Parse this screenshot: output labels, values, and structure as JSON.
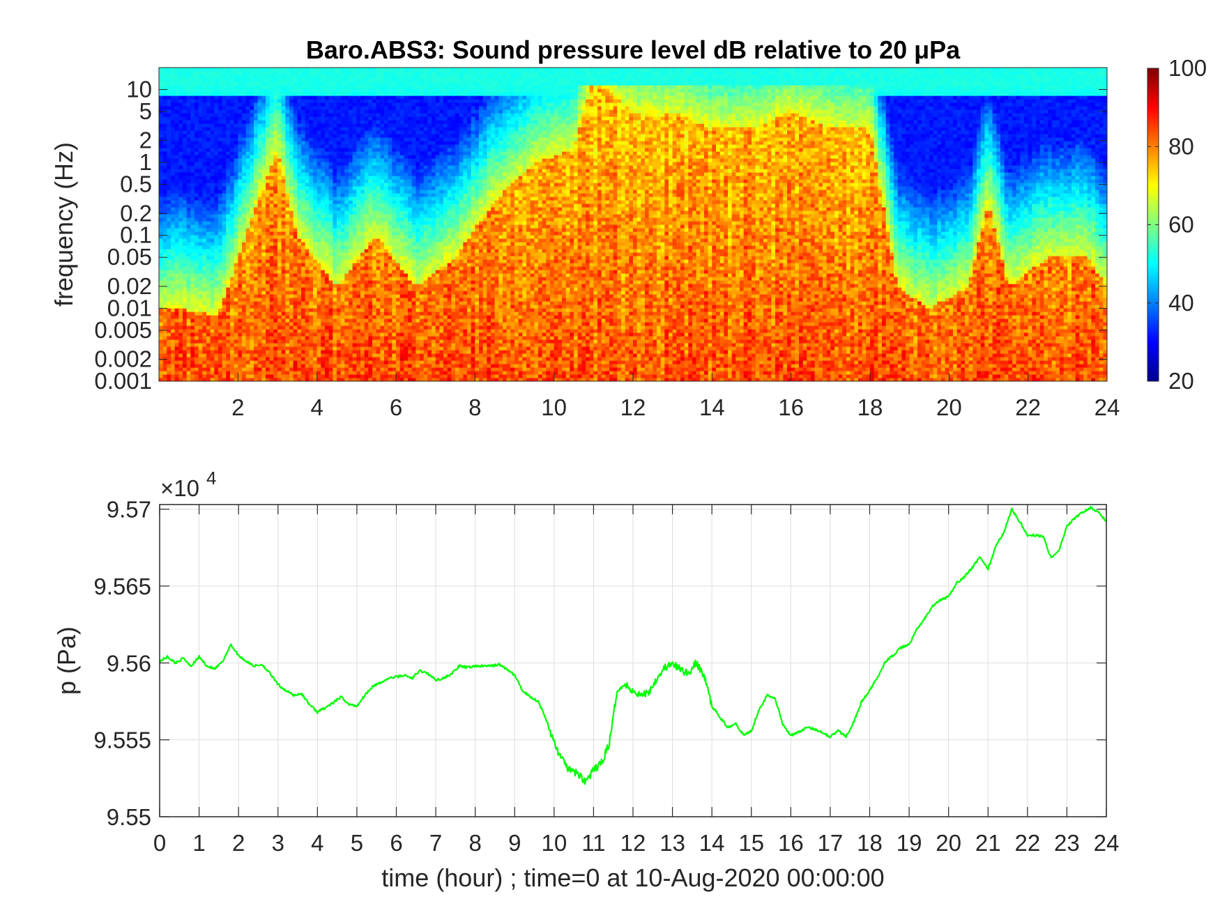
{
  "chart_data": [
    {
      "type": "heatmap",
      "title": "Baro.ABS3: Sound pressure level dB relative to 20 μPa",
      "xlabel": "",
      "ylabel": "frequency (Hz)",
      "y_scale": "log",
      "xlim": [
        0,
        24
      ],
      "ylim": [
        0.001,
        20
      ],
      "x_ticks": [
        2,
        4,
        6,
        8,
        10,
        12,
        14,
        16,
        18,
        20,
        22,
        24
      ],
      "x_tick_labels": [
        "2",
        "4",
        "6",
        "8",
        "10",
        "12",
        "14",
        "16",
        "18",
        "20",
        "22",
        "24"
      ],
      "y_ticks": [
        0.001,
        0.002,
        0.005,
        0.01,
        0.02,
        0.05,
        0.1,
        0.2,
        0.5,
        1,
        2,
        5,
        10
      ],
      "y_tick_labels": [
        "0.001",
        "0.002",
        "0.005",
        "0.01",
        "0.02",
        "0.05",
        "0.1",
        "0.2",
        "0.5",
        "1",
        "2",
        "5",
        "10"
      ],
      "colorbar": {
        "colormap": "jet",
        "clim": [
          20,
          100
        ],
        "ticks": [
          20,
          40,
          60,
          80,
          100
        ],
        "tick_labels": [
          "20",
          "40",
          "60",
          "80",
          "100"
        ]
      },
      "activity_profile": {
        "description_hours": [
          0.5,
          1.5,
          2.5,
          3.0,
          3.5,
          4.5,
          5.5,
          6.5,
          7.5,
          8.5,
          9.5,
          10.5,
          11,
          12,
          13,
          14,
          15,
          16,
          17,
          18,
          18.7,
          19.5,
          20.5,
          21,
          21.5,
          22.5,
          23.5,
          24
        ],
        "top_freq_hz_of_loud_band": [
          0.01,
          0.008,
          0.3,
          1.5,
          0.1,
          0.02,
          0.1,
          0.02,
          0.05,
          0.3,
          1.0,
          1.5,
          15,
          5,
          5,
          3,
          3,
          5,
          3,
          3,
          0.02,
          0.01,
          0.02,
          0.3,
          0.02,
          0.05,
          0.05,
          0.02
        ]
      }
    },
    {
      "type": "line",
      "title": "",
      "xlabel": "time (hour) ; time=0 at 10-Aug-2020 00:00:00",
      "ylabel": "p (Pa)",
      "xlim": [
        0,
        24
      ],
      "ylim": [
        95500,
        95703
      ],
      "grid": true,
      "y_exponent_label": "×10",
      "y_exponent_power": "4",
      "x_ticks": [
        0,
        1,
        2,
        3,
        4,
        5,
        6,
        7,
        8,
        9,
        10,
        11,
        12,
        13,
        14,
        15,
        16,
        17,
        18,
        19,
        20,
        21,
        22,
        23,
        24
      ],
      "x_tick_labels": [
        "0",
        "1",
        "2",
        "3",
        "4",
        "5",
        "6",
        "7",
        "8",
        "9",
        "10",
        "11",
        "12",
        "13",
        "14",
        "15",
        "16",
        "17",
        "18",
        "19",
        "20",
        "21",
        "22",
        "23",
        "24"
      ],
      "y_ticks": [
        95500,
        95550,
        95600,
        95650,
        95700
      ],
      "y_tick_labels": [
        "9.55",
        "9.555",
        "9.56",
        "9.565",
        "9.57"
      ],
      "series": [
        {
          "color": "#00ff00",
          "x": [
            0,
            0.2,
            0.4,
            0.6,
            0.8,
            1.0,
            1.2,
            1.4,
            1.6,
            1.8,
            2.0,
            2.2,
            2.4,
            2.6,
            2.8,
            3.0,
            3.2,
            3.4,
            3.6,
            3.8,
            4.0,
            4.2,
            4.4,
            4.6,
            4.8,
            5.0,
            5.2,
            5.4,
            5.6,
            5.8,
            6.0,
            6.2,
            6.4,
            6.6,
            6.8,
            7.0,
            7.2,
            7.4,
            7.6,
            7.8,
            8.0,
            8.2,
            8.4,
            8.6,
            8.8,
            9.0,
            9.2,
            9.4,
            9.6,
            9.8,
            10.0,
            10.2,
            10.4,
            10.6,
            10.8,
            11.0,
            11.2,
            11.4,
            11.6,
            11.8,
            12.0,
            12.2,
            12.4,
            12.6,
            12.8,
            13.0,
            13.2,
            13.4,
            13.6,
            13.8,
            14.0,
            14.2,
            14.4,
            14.6,
            14.8,
            15.0,
            15.2,
            15.4,
            15.6,
            15.8,
            16.0,
            16.2,
            16.4,
            16.6,
            16.8,
            17.0,
            17.2,
            17.4,
            17.6,
            17.8,
            18.0,
            18.2,
            18.4,
            18.6,
            18.8,
            19.0,
            19.2,
            19.4,
            19.6,
            19.8,
            20.0,
            20.2,
            20.4,
            20.6,
            20.8,
            21.0,
            21.2,
            21.4,
            21.6,
            21.8,
            22.0,
            22.2,
            22.4,
            22.6,
            22.8,
            23.0,
            23.2,
            23.4,
            23.6,
            23.8,
            24.0
          ],
          "values": [
            95601,
            95604,
            95600,
            95603,
            95598,
            95604,
            95598,
            95596,
            95601,
            95612,
            95605,
            95601,
            95598,
            95599,
            95593,
            95586,
            95582,
            95579,
            95580,
            95573,
            95568,
            95571,
            95574,
            95578,
            95573,
            95572,
            95579,
            95585,
            95587,
            95590,
            95591,
            95592,
            95590,
            95595,
            95593,
            95589,
            95590,
            95593,
            95598,
            95597,
            95598,
            95598,
            95598,
            95599,
            95596,
            95592,
            95582,
            95578,
            95575,
            95563,
            95548,
            95537,
            95530,
            95528,
            95523,
            95530,
            95535,
            95548,
            95582,
            95586,
            95582,
            95579,
            95581,
            95590,
            95597,
            95599,
            95596,
            95593,
            95600,
            95592,
            95572,
            95565,
            95558,
            95561,
            95553,
            95556,
            95570,
            95579,
            95577,
            95560,
            95553,
            95555,
            95558,
            95557,
            95555,
            95552,
            95556,
            95552,
            95562,
            95575,
            95582,
            95591,
            95601,
            95605,
            95610,
            95612,
            95622,
            95629,
            95637,
            95641,
            95643,
            95652,
            95656,
            95662,
            95669,
            95661,
            95676,
            95685,
            95700,
            95692,
            95683,
            95683,
            95682,
            95668,
            95673,
            95689,
            95694,
            95698,
            95701,
            95698,
            95692
          ]
        }
      ]
    }
  ]
}
